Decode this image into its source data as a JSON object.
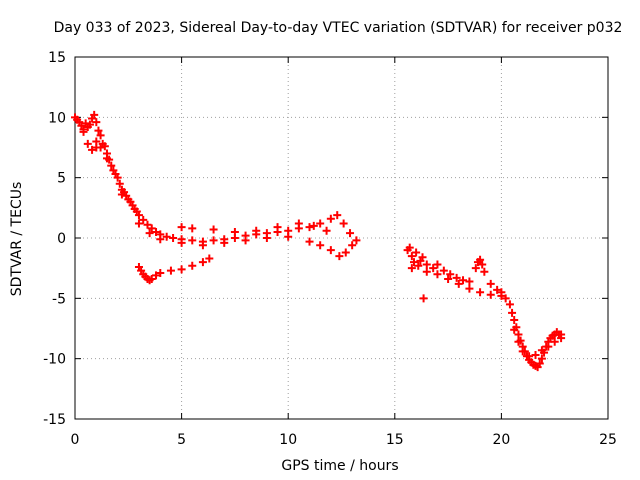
{
  "chart_data": {
    "type": "scatter",
    "title": "Day 033 of 2023, Sidereal Day-to-day VTEC variation (SDTVAR) for receiver p032",
    "xlabel": "GPS time / hours",
    "ylabel": "SDTVAR / TECUs",
    "xlim": [
      0,
      25
    ],
    "ylim": [
      -15,
      15
    ],
    "xticks": [
      "0",
      "5",
      "10",
      "15",
      "20",
      "25"
    ],
    "yticks": [
      "15",
      "10",
      "5",
      "0",
      "-5",
      "-10",
      "-15"
    ],
    "grid": true,
    "marker": "+",
    "series": [
      {
        "color": "#ff0000",
        "points": [
          [
            0.0,
            10.0
          ],
          [
            0.1,
            9.8
          ],
          [
            0.2,
            9.6
          ],
          [
            0.3,
            9.3
          ],
          [
            0.4,
            9.0
          ],
          [
            0.5,
            9.5
          ],
          [
            0.6,
            9.2
          ],
          [
            0.7,
            9.4
          ],
          [
            0.8,
            9.9
          ],
          [
            0.9,
            10.2
          ],
          [
            1.0,
            9.6
          ],
          [
            1.1,
            8.9
          ],
          [
            1.2,
            8.5
          ],
          [
            1.3,
            7.8
          ],
          [
            1.4,
            7.6
          ],
          [
            1.5,
            7.0
          ],
          [
            1.6,
            6.5
          ],
          [
            1.7,
            6.0
          ],
          [
            1.8,
            5.6
          ],
          [
            1.9,
            5.3
          ],
          [
            2.0,
            5.0
          ],
          [
            2.1,
            4.5
          ],
          [
            2.2,
            4.0
          ],
          [
            2.3,
            3.8
          ],
          [
            2.4,
            3.5
          ],
          [
            2.5,
            3.2
          ],
          [
            2.6,
            3.0
          ],
          [
            2.7,
            2.7
          ],
          [
            2.8,
            2.4
          ],
          [
            2.9,
            2.2
          ],
          [
            3.0,
            1.9
          ],
          [
            3.2,
            1.5
          ],
          [
            3.4,
            1.1
          ],
          [
            3.6,
            0.8
          ],
          [
            3.8,
            0.5
          ],
          [
            4.0,
            0.3
          ],
          [
            4.3,
            0.1
          ],
          [
            4.6,
            0.0
          ],
          [
            5.0,
            -0.1
          ],
          [
            5.5,
            -0.2
          ],
          [
            6.0,
            -0.3
          ],
          [
            6.5,
            -0.2
          ],
          [
            7.0,
            -0.1
          ],
          [
            7.5,
            0.0
          ],
          [
            8.0,
            0.2
          ],
          [
            8.5,
            0.3
          ],
          [
            9.0,
            0.4
          ],
          [
            9.5,
            0.5
          ],
          [
            10.0,
            0.6
          ],
          [
            10.5,
            0.8
          ],
          [
            11.0,
            0.9
          ],
          [
            11.5,
            1.2
          ],
          [
            12.0,
            1.6
          ],
          [
            12.3,
            1.9
          ],
          [
            12.6,
            1.2
          ],
          [
            12.9,
            0.4
          ],
          [
            13.2,
            -0.2
          ],
          [
            1.0,
            8.0
          ],
          [
            1.2,
            7.5
          ],
          [
            1.5,
            6.6
          ],
          [
            2.2,
            3.6
          ],
          [
            3.0,
            1.2
          ],
          [
            3.5,
            0.4
          ],
          [
            4.0,
            -0.1
          ],
          [
            5.0,
            -0.4
          ],
          [
            6.0,
            -0.6
          ],
          [
            7.0,
            -0.4
          ],
          [
            8.0,
            -0.2
          ],
          [
            9.0,
            0.0
          ],
          [
            10.0,
            0.1
          ],
          [
            11.0,
            -0.3
          ],
          [
            11.5,
            -0.6
          ],
          [
            12.0,
            -1.0
          ],
          [
            12.4,
            -1.5
          ],
          [
            12.7,
            -1.2
          ],
          [
            13.0,
            -0.6
          ],
          [
            0.4,
            8.8
          ],
          [
            0.6,
            7.8
          ],
          [
            0.8,
            7.3
          ],
          [
            1.0,
            7.5
          ],
          [
            5.0,
            0.9
          ],
          [
            5.5,
            0.8
          ],
          [
            6.5,
            0.7
          ],
          [
            7.5,
            0.5
          ],
          [
            8.5,
            0.6
          ],
          [
            9.5,
            0.9
          ],
          [
            10.5,
            1.2
          ],
          [
            11.2,
            1.0
          ],
          [
            11.8,
            0.6
          ],
          [
            3.0,
            -2.4
          ],
          [
            3.1,
            -2.7
          ],
          [
            3.2,
            -3.0
          ],
          [
            3.3,
            -3.2
          ],
          [
            3.4,
            -3.4
          ],
          [
            3.5,
            -3.5
          ],
          [
            3.6,
            -3.4
          ],
          [
            3.8,
            -3.1
          ],
          [
            4.0,
            -2.9
          ],
          [
            4.5,
            -2.7
          ],
          [
            5.0,
            -2.6
          ],
          [
            5.5,
            -2.3
          ],
          [
            6.0,
            -2.0
          ],
          [
            6.3,
            -1.7
          ],
          [
            15.6,
            -1.0
          ],
          [
            15.7,
            -0.8
          ],
          [
            15.8,
            -1.5
          ],
          [
            15.9,
            -2.0
          ],
          [
            16.0,
            -1.2
          ],
          [
            16.1,
            -2.3
          ],
          [
            16.2,
            -1.9
          ],
          [
            16.3,
            -1.6
          ],
          [
            16.35,
            -5.0
          ],
          [
            16.5,
            -2.2
          ],
          [
            16.8,
            -2.5
          ],
          [
            17.0,
            -2.2
          ],
          [
            17.3,
            -2.7
          ],
          [
            17.6,
            -3.0
          ],
          [
            17.9,
            -3.3
          ],
          [
            18.2,
            -3.5
          ],
          [
            18.5,
            -3.6
          ],
          [
            18.8,
            -2.5
          ],
          [
            18.9,
            -2.0
          ],
          [
            19.0,
            -1.8
          ],
          [
            19.1,
            -2.2
          ],
          [
            19.2,
            -2.8
          ],
          [
            19.5,
            -3.8
          ],
          [
            19.8,
            -4.3
          ],
          [
            20.0,
            -4.5
          ],
          [
            15.8,
            -2.5
          ],
          [
            16.5,
            -2.8
          ],
          [
            17.0,
            -3.0
          ],
          [
            17.5,
            -3.4
          ],
          [
            18.0,
            -3.8
          ],
          [
            18.5,
            -4.2
          ],
          [
            19.0,
            -4.5
          ],
          [
            19.5,
            -4.7
          ],
          [
            20.0,
            -4.8
          ],
          [
            20.2,
            -5.0
          ],
          [
            20.4,
            -5.5
          ],
          [
            20.5,
            -6.2
          ],
          [
            20.6,
            -6.8
          ],
          [
            20.7,
            -7.4
          ],
          [
            20.8,
            -8.0
          ],
          [
            20.9,
            -8.5
          ],
          [
            21.0,
            -9.0
          ],
          [
            21.1,
            -9.4
          ],
          [
            21.2,
            -9.8
          ],
          [
            21.3,
            -10.1
          ],
          [
            21.4,
            -10.3
          ],
          [
            21.5,
            -10.5
          ],
          [
            21.6,
            -10.6
          ],
          [
            21.7,
            -10.7
          ],
          [
            21.8,
            -10.4
          ],
          [
            21.9,
            -10.0
          ],
          [
            22.0,
            -9.5
          ],
          [
            22.1,
            -9.0
          ],
          [
            22.2,
            -8.6
          ],
          [
            22.3,
            -8.3
          ],
          [
            22.4,
            -8.1
          ],
          [
            22.5,
            -8.0
          ],
          [
            22.6,
            -7.8
          ],
          [
            22.7,
            -8.0
          ],
          [
            22.8,
            -8.3
          ],
          [
            20.6,
            -7.6
          ],
          [
            20.8,
            -8.6
          ],
          [
            21.0,
            -9.4
          ],
          [
            21.3,
            -9.8
          ],
          [
            21.6,
            -9.7
          ],
          [
            21.9,
            -9.3
          ],
          [
            22.2,
            -9.0
          ],
          [
            22.5,
            -8.6
          ],
          [
            22.8,
            -8.0
          ]
        ]
      }
    ]
  }
}
